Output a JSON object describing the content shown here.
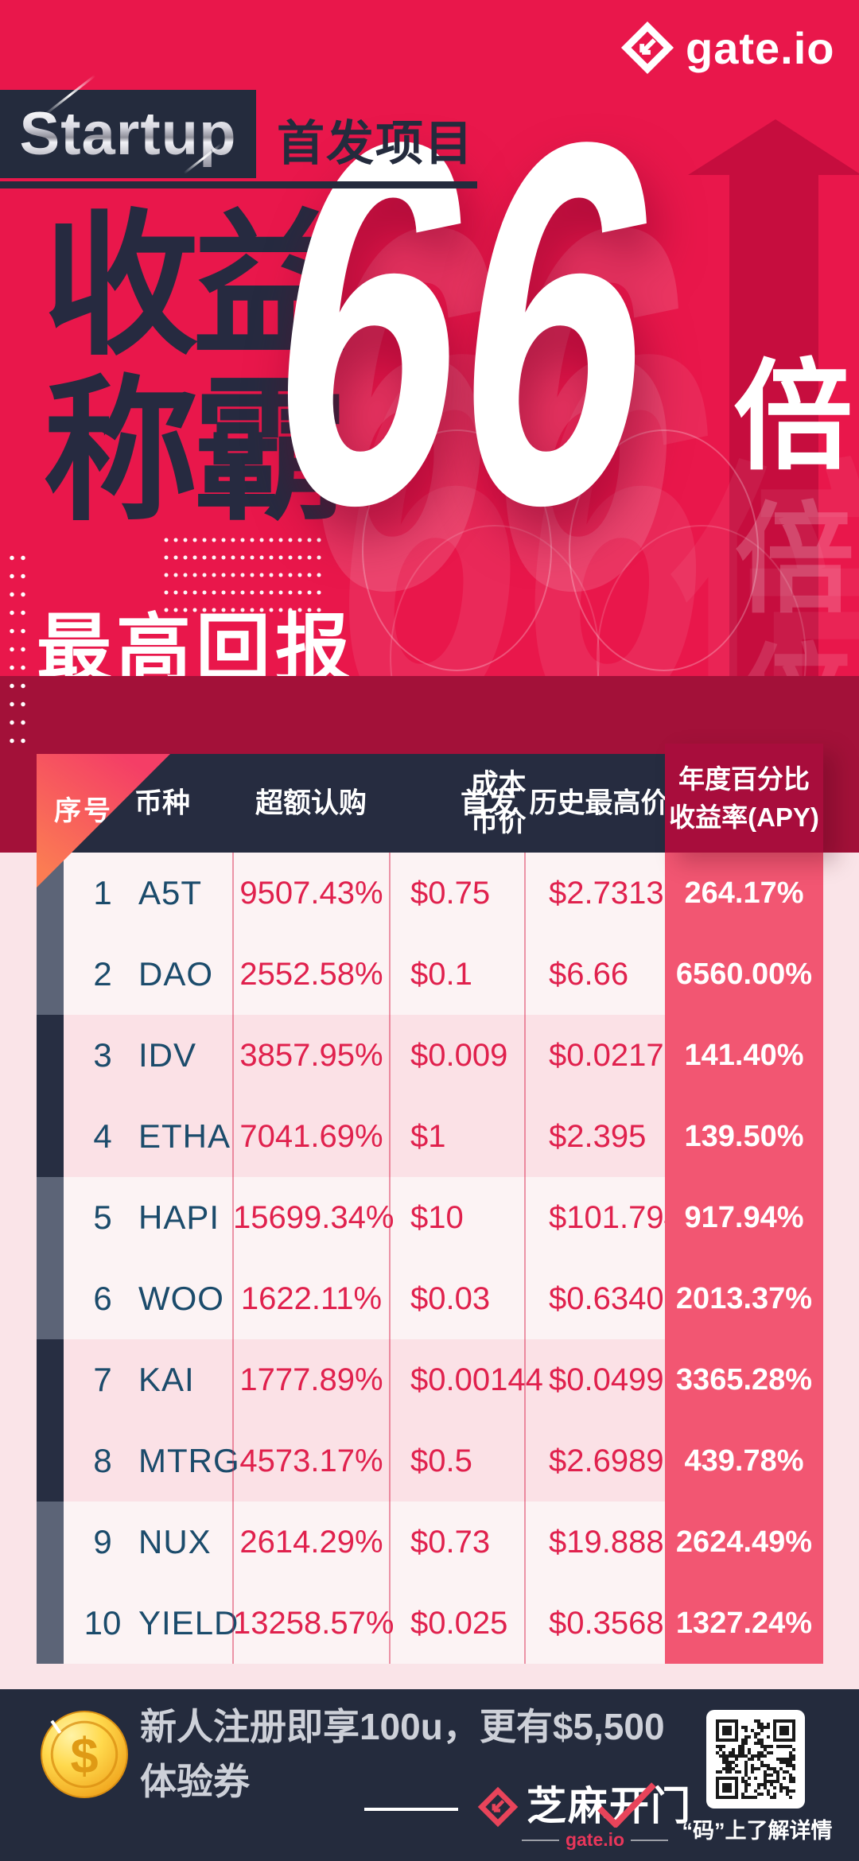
{
  "brand": {
    "name": "gate.io"
  },
  "banner": {
    "program_en": "Startup",
    "program_zh": "首发项目"
  },
  "hero": {
    "headline_l1": "收益",
    "headline_l2": "称霸",
    "multiplier": "66",
    "unit": "倍",
    "subheadline": "最高回报"
  },
  "table": {
    "headers": {
      "index": "序号",
      "coin": "币种",
      "oversubscription": "超额认购",
      "launch_price": [
        "首发",
        "成本币价"
      ],
      "ath": "历史最高价",
      "apy": [
        "年度百分比",
        "收益率(APY)"
      ]
    },
    "rows": [
      {
        "index": "1",
        "coin": "A5T",
        "oversubscription": "9507.43%",
        "launch_price": "$0.75",
        "ath": "$2.7313",
        "apy": "264.17%"
      },
      {
        "index": "2",
        "coin": "DAO",
        "oversubscription": "2552.58%",
        "launch_price": "$0.1",
        "ath": "$6.66",
        "apy": "6560.00%"
      },
      {
        "index": "3",
        "coin": "IDV",
        "oversubscription": "3857.95%",
        "launch_price": "$0.009",
        "ath": "$0.021726",
        "apy": "141.40%"
      },
      {
        "index": "4",
        "coin": "ETHA",
        "oversubscription": "7041.69%",
        "launch_price": "$1",
        "ath": "$2.395",
        "apy": "139.50%"
      },
      {
        "index": "5",
        "coin": "HAPI",
        "oversubscription": "15699.34%",
        "launch_price": "$10",
        "ath": "$101.7942",
        "apy": "917.94%"
      },
      {
        "index": "6",
        "coin": "WOO",
        "oversubscription": "1622.11%",
        "launch_price": "$0.03",
        "ath": "$0.63401",
        "apy": "2013.37%"
      },
      {
        "index": "7",
        "coin": "KAI",
        "oversubscription": "1777.89%",
        "launch_price": "$0.00144",
        "ath": "$0.0499",
        "apy": "3365.28%"
      },
      {
        "index": "8",
        "coin": "MTRG",
        "oversubscription": "4573.17%",
        "launch_price": "$0.5",
        "ath": "$2.6989",
        "apy": "439.78%"
      },
      {
        "index": "9",
        "coin": "NUX",
        "oversubscription": "2614.29%",
        "launch_price": "$0.73",
        "ath": "$19.8888",
        "apy": "2624.49%"
      },
      {
        "index": "10",
        "coin": "YIELD",
        "oversubscription": "13258.57%",
        "launch_price": "$0.025",
        "ath": "$0.35681",
        "apy": "1327.24%"
      }
    ]
  },
  "footer": {
    "promo_l1": "新人注册即享100u，更有$5,500",
    "promo_l2": "体验券",
    "brand_zh": "芝麻开门",
    "brand_small": "gate.io",
    "qr_caption": "“码”上了解详情"
  },
  "icons": {
    "gate_diamond": "gate-diamond-logo",
    "coin": "gold-dollar-coin",
    "qr": "qr-code",
    "arrow_up": "up-arrow"
  },
  "colors": {
    "primary": "#E9174B",
    "navy": "#242B3D",
    "maroon": "#A31139",
    "apy_header": "#A80D3C",
    "apy_cell": "#F25672",
    "page_pink": "#FAE4E8",
    "row_light": "#FCF3F4",
    "row_dark": "#FBE1E6",
    "value_red": "#E0214D",
    "coin_navy": "#1B4B6B",
    "strip_slate": "#5C6477",
    "strip_navy": "#272E42",
    "gold": "#F7C52B",
    "logo_red": "#E8445A"
  }
}
